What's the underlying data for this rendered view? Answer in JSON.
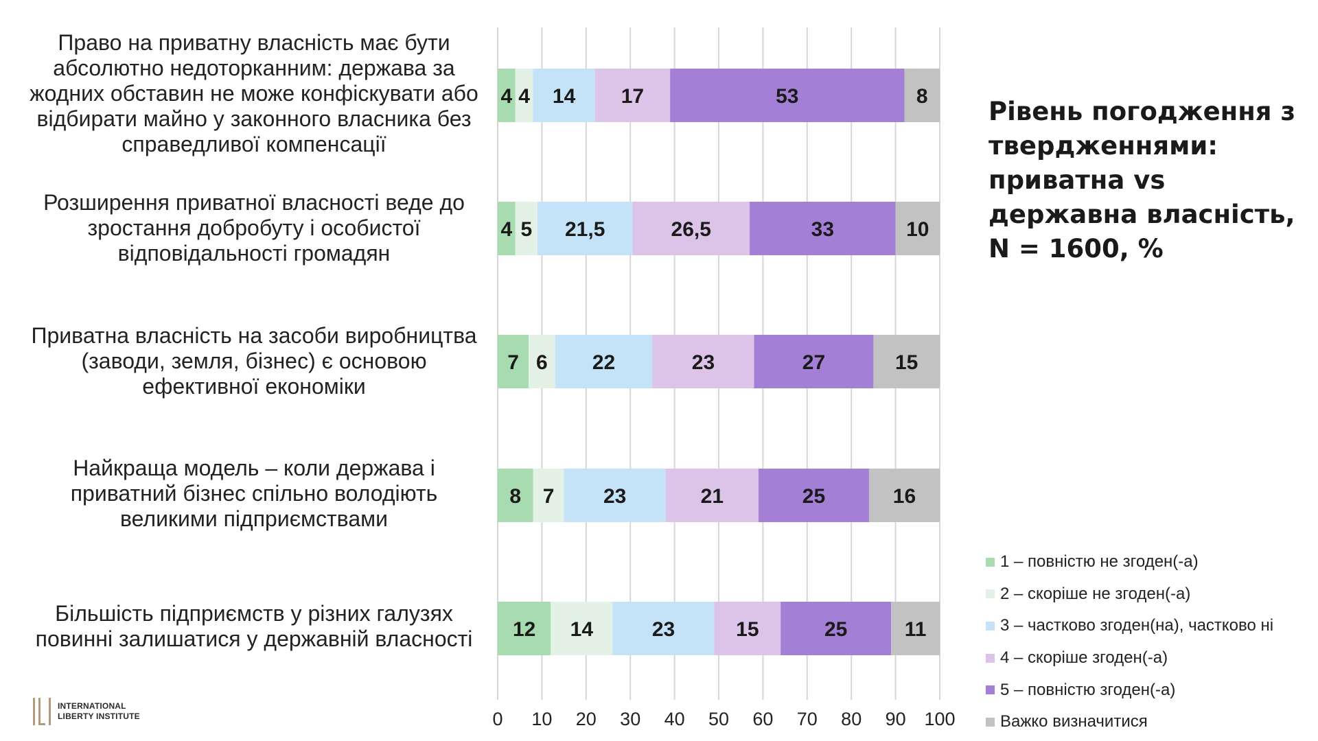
{
  "title": "Рівень погодження з твердженнями: приватна vs державна власність, N = 1600, %",
  "logo": {
    "line1": "International",
    "line2": "Liberty Institute",
    "color": "#b39a78"
  },
  "chart_data": {
    "type": "bar",
    "orientation": "horizontal",
    "stacked": true,
    "categories": [
      "Право на приватну власність має бути абсолютно недоторканним: держава за жодних обставин не може конфіскувати або відбирати майно у законного власника без справедливої компенсації",
      "Розширення приватної власності веде до зростання добробуту і особистої відповідальності громадян",
      "Приватна власність на засоби виробництва (заводи, земля, бізнес) є основою ефективної економіки",
      "Найкраща модель – коли держава і приватний бізнес спільно володіють великими підприємствами",
      "Більшість підприємств у різних галузях повинні залишатися у державній власності"
    ],
    "series": [
      {
        "name": "1 – повністю не згоден(-а)",
        "color": "#a8dcb0",
        "values": [
          4,
          4,
          7,
          8,
          12
        ],
        "labels": [
          "4",
          "4",
          "7",
          "8",
          "12"
        ]
      },
      {
        "name": "2 – скоріше не згоден(-а)",
        "color": "#e3f1e6",
        "values": [
          4,
          5,
          6,
          7,
          14
        ],
        "labels": [
          "4",
          "5",
          "6",
          "7",
          "14"
        ]
      },
      {
        "name": "3 – частково згоден(на), частково ні",
        "color": "#c4e3f8",
        "values": [
          14,
          21.5,
          22,
          23,
          23
        ],
        "labels": [
          "14",
          "21,5",
          "22",
          "23",
          "23"
        ]
      },
      {
        "name": "4 – скоріше згоден(-а)",
        "color": "#dcc3e8",
        "values": [
          17,
          26.5,
          23,
          21,
          15
        ],
        "labels": [
          "17",
          "26,5",
          "23",
          "21",
          "15"
        ]
      },
      {
        "name": "5 – повністю згоден(-а)",
        "color": "#a47fd6",
        "values": [
          53,
          33,
          27,
          25,
          25
        ],
        "labels": [
          "53",
          "33",
          "27",
          "25",
          "25"
        ]
      },
      {
        "name": "Важко визначитися",
        "color": "#c2c2c2",
        "values": [
          8,
          10,
          15,
          16,
          11
        ],
        "labels": [
          "8",
          "10",
          "15",
          "16",
          "11"
        ]
      }
    ],
    "xlim": [
      0,
      100
    ],
    "xticks": [
      "0",
      "10",
      "20",
      "30",
      "40",
      "50",
      "60",
      "70",
      "80",
      "90",
      "100"
    ],
    "grid": "vertical",
    "legend_position": "bottom-right"
  }
}
